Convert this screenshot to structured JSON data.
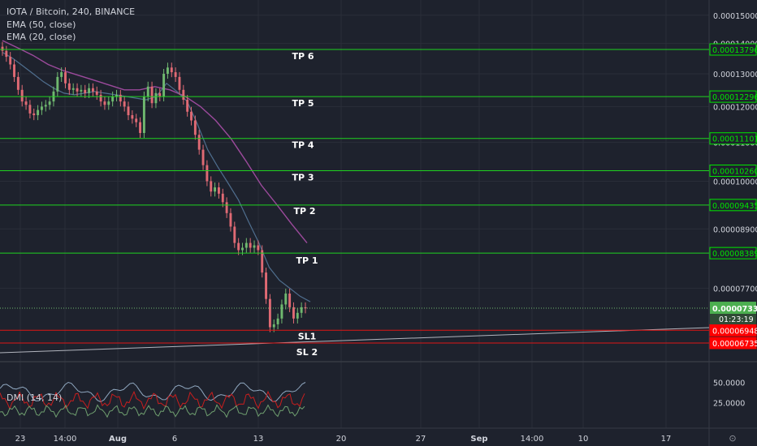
{
  "header": {
    "symbol_line": "IOTA / Bitcoin, 240, BINANCE",
    "indicators": [
      "EMA (50, close)",
      "EMA (20, close)"
    ]
  },
  "colors": {
    "background": "#1e222d",
    "grid": "#2a2e39",
    "up_candle": "#6fb86f",
    "down_candle": "#e06a74",
    "ema50": "#9c4a9c",
    "ema20": "#4f6e8e",
    "tp_line": "#1fd41f",
    "sl_line": "#e01515",
    "trendline": "#b2b5be",
    "price_label_green": "#00e600",
    "price_label_red": "#ff0000",
    "current_price_label": "#4caf50",
    "dmi_plus": "#6f9f6f",
    "dmi_minus": "#c81e1e",
    "adx": "#8fa7bf",
    "text": "#d1d4dc"
  },
  "chart_data": {
    "type": "candlestick",
    "title": "IOTA / Bitcoin, 240, BINANCE",
    "y_axis_scale": "log",
    "y_ticks": [
      "0.00015000",
      "0.00014000",
      "0.00013000",
      "0.00012000",
      "0.00011000",
      "0.00010000",
      "0.00008900",
      "0.00007700"
    ],
    "x_ticks": [
      "23",
      "14:00",
      "Aug",
      "6",
      "13",
      "20",
      "27",
      "Sep",
      "14:00",
      "10",
      "17"
    ],
    "levels": [
      {
        "label": "TP 6",
        "price": "0.00013796",
        "kind": "tp"
      },
      {
        "label": "TP 5",
        "price": "0.00012296",
        "kind": "tp"
      },
      {
        "label": "TP 4",
        "price": "0.00011101",
        "kind": "tp"
      },
      {
        "label": "TP 3",
        "price": "0.00010260",
        "kind": "tp"
      },
      {
        "label": "TP 2",
        "price": "0.00009435",
        "kind": "tp"
      },
      {
        "label": "TP 1",
        "price": "0.00008389",
        "kind": "tp"
      },
      {
        "label": "SL1",
        "price": "0.00006948",
        "kind": "sl"
      },
      {
        "label": "SL 2",
        "price": "0.00006735",
        "kind": "sl"
      }
    ],
    "current_price": "0.00007333",
    "countdown": "01:23:19",
    "close_series": [
      0.0001375,
      0.0001355,
      0.000133,
      0.000129,
      0.000125,
      0.0001215,
      0.0001205,
      0.000118,
      0.0001175,
      0.000119,
      0.00012,
      0.0001205,
      0.0001215,
      0.0001245,
      0.000129,
      0.0001305,
      0.000127,
      0.000125,
      0.0001255,
      0.0001245,
      0.000125,
      0.000124,
      0.0001255,
      0.0001245,
      0.0001235,
      0.0001215,
      0.0001205,
      0.0001215,
      0.000123,
      0.0001235,
      0.0001215,
      0.00012,
      0.0001175,
      0.0001165,
      0.0001155,
      0.0001125,
      0.000123,
      0.000126,
      0.000121,
      0.000124,
      0.000123,
      0.00013,
      0.000132,
      0.0001305,
      0.000129,
      0.000125,
      0.000122,
      0.0001185,
      0.000116,
      0.000112,
      0.000108,
      0.000104,
      0.0001,
      9.75e-05,
      9.85e-05,
      9.7e-05,
      9.5e-05,
      9.25e-05,
      8.95e-05,
      8.6e-05,
      8.45e-05,
      8.5e-05,
      8.6e-05,
      8.5e-05,
      8.55e-05,
      8.45e-05,
      8e-05,
      7.5e-05,
      7e-05,
      7.05e-05,
      7.15e-05,
      7.4e-05,
      7.6e-05,
      7.35e-05,
      7.15e-05,
      7.25e-05,
      7.35e-05,
      7.33e-05
    ],
    "ema20": [
      0.000137,
      0.000135,
      0.0001325,
      0.00013,
      0.0001275,
      0.0001255,
      0.000124,
      0.0001235,
      0.000124,
      0.0001245,
      0.000124,
      0.0001235,
      0.000123,
      0.0001225,
      0.000122,
      0.000123,
      0.000127,
      0.0001245,
      0.0001215,
      0.000115,
      0.000108,
      0.0001035,
      9.95e-05,
      9.55e-05,
      9.05e-05,
      8.6e-05,
      8.1e-05,
      7.85e-05,
      7.7e-05,
      7.55e-05,
      7.45e-05
    ],
    "ema50": [
      0.000141,
      0.0001385,
      0.000136,
      0.000133,
      0.000131,
      0.0001295,
      0.000128,
      0.0001265,
      0.000125,
      0.000125,
      0.000126,
      0.000125,
      0.000123,
      0.00012,
      0.000116,
      0.000111,
      0.000105,
      9.9e-05,
      9.45e-05,
      9e-05,
      8.6e-05
    ],
    "dmi": {
      "label": "DMI (14, 14)",
      "y_ticks": [
        "50.0000",
        "25.0000"
      ]
    }
  },
  "time_button_label": "⊙"
}
